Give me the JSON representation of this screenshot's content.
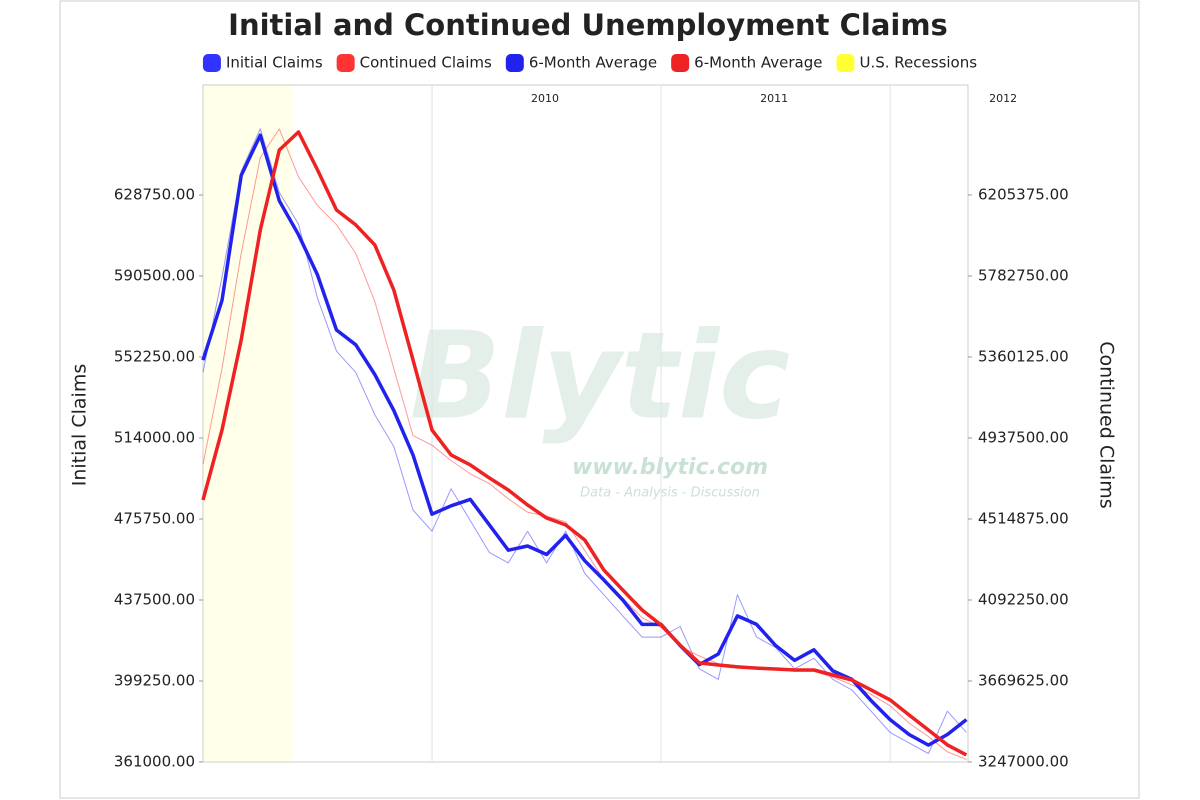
{
  "chart_data": {
    "type": "line",
    "title": "Initial and Continued Unemployment Claims",
    "y_label": "Initial Claims",
    "y2_label": "Continued Claims",
    "watermark": {
      "text": "Blytic",
      "url": "www.blytic.com",
      "tagline": "Data - Analysis - Discussion"
    },
    "x": [
      2009.0,
      2009.083,
      2009.167,
      2009.25,
      2009.333,
      2009.417,
      2009.5,
      2009.583,
      2009.667,
      2009.75,
      2009.833,
      2009.917,
      2010.0,
      2010.083,
      2010.167,
      2010.25,
      2010.333,
      2010.417,
      2010.5,
      2010.583,
      2010.667,
      2010.75,
      2010.833,
      2010.917,
      2011.0,
      2011.083,
      2011.167,
      2011.25,
      2011.333,
      2011.417,
      2011.5,
      2011.583,
      2011.667,
      2011.75,
      2011.833,
      2011.917,
      2012.0,
      2012.083,
      2012.167,
      2012.25,
      2012.333
    ],
    "xlim": [
      2009.0,
      2012.34
    ],
    "xticks": [
      2010,
      2011,
      2012
    ],
    "ylim": [
      361000,
      680700
    ],
    "yticks": [
      {
        "value": 361000,
        "label": "361000.00"
      },
      {
        "value": 399250,
        "label": "399250.00"
      },
      {
        "value": 437500,
        "label": "437500.00"
      },
      {
        "value": 475750,
        "label": "475750.00"
      },
      {
        "value": 514000,
        "label": "514000.00"
      },
      {
        "value": 552250,
        "label": "552250.00"
      },
      {
        "value": 590500,
        "label": "590500.00"
      },
      {
        "value": 628750,
        "label": "628750.00"
      }
    ],
    "y2lim": [
      3247000,
      6779000
    ],
    "y2ticks": [
      {
        "value": 3247000,
        "label": "3247000.00"
      },
      {
        "value": 3669625,
        "label": "3669625.00"
      },
      {
        "value": 4092250,
        "label": "4092250.00"
      },
      {
        "value": 4514875,
        "label": "4514875.00"
      },
      {
        "value": 4937500,
        "label": "4937500.00"
      },
      {
        "value": 5360125,
        "label": "5360125.00"
      },
      {
        "value": 5782750,
        "label": "5782750.00"
      },
      {
        "value": 6205375,
        "label": "6205375.00"
      }
    ],
    "grid": true,
    "recessions": {
      "name": "U.S. Recessions",
      "color": "#ffff33",
      "periods": [
        [
          2009.0,
          2009.39
        ]
      ]
    },
    "series": [
      {
        "name": "Initial Claims",
        "color": "#3333ff",
        "line_width": 1,
        "axis": "y",
        "values": [
          545000,
          590000,
          640000,
          660000,
          630000,
          615000,
          580000,
          555000,
          545000,
          525000,
          510000,
          480000,
          470000,
          490000,
          475000,
          460000,
          455000,
          470000,
          455000,
          470000,
          450000,
          440000,
          430000,
          420000,
          420000,
          425000,
          405000,
          400000,
          440000,
          420000,
          415000,
          405000,
          410000,
          400000,
          395000,
          385000,
          375000,
          370000,
          365000,
          385000,
          375000
        ]
      },
      {
        "name": "Continued Claims",
        "color": "#ff3333",
        "line_width": 1,
        "axis": "y2",
        "values": [
          4800000,
          5300000,
          5900000,
          6400000,
          6550000,
          6300000,
          6150000,
          6050000,
          5900000,
          5650000,
          5300000,
          4950000,
          4900000,
          4820000,
          4750000,
          4700000,
          4620000,
          4550000,
          4530000,
          4500000,
          4350000,
          4200000,
          4100000,
          4000000,
          3950000,
          3850000,
          3800000,
          3760000,
          3750000,
          3740000,
          3730000,
          3720000,
          3720000,
          3690000,
          3650000,
          3600000,
          3540000,
          3450000,
          3380000,
          3300000,
          3260000
        ]
      },
      {
        "name": "6-Month Average",
        "color": "#2222ee",
        "line_width": 3.5,
        "axis": "y",
        "values": [
          550800,
          579000,
          638000,
          657000,
          626000,
          610000,
          591000,
          565000,
          558000,
          544000,
          527000,
          506000,
          478000,
          482000,
          485000,
          473000,
          461000,
          463000,
          459000,
          468000,
          456000,
          447000,
          437500,
          426000,
          426000,
          416000,
          407000,
          412000,
          430000,
          426000,
          416000,
          409000,
          414000,
          404000,
          400000,
          390000,
          381000,
          374000,
          369000,
          374000,
          381000
        ]
      },
      {
        "name": "6-Month Average",
        "color": "#ee2222",
        "line_width": 3.5,
        "axis": "y2",
        "values": [
          4614000,
          4979000,
          5449000,
          6023000,
          6440000,
          6534000,
          6336000,
          6127000,
          6049000,
          5945000,
          5710000,
          5345000,
          4979000,
          4849000,
          4797000,
          4729000,
          4666000,
          4588000,
          4520000,
          4484000,
          4405000,
          4249000,
          4144000,
          4040000,
          3962000,
          3857000,
          3764000,
          3753000,
          3743000,
          3737000,
          3732000,
          3727000,
          3727000,
          3701000,
          3675000,
          3623000,
          3571000,
          3492000,
          3414000,
          3336000,
          3284000
        ]
      }
    ]
  }
}
